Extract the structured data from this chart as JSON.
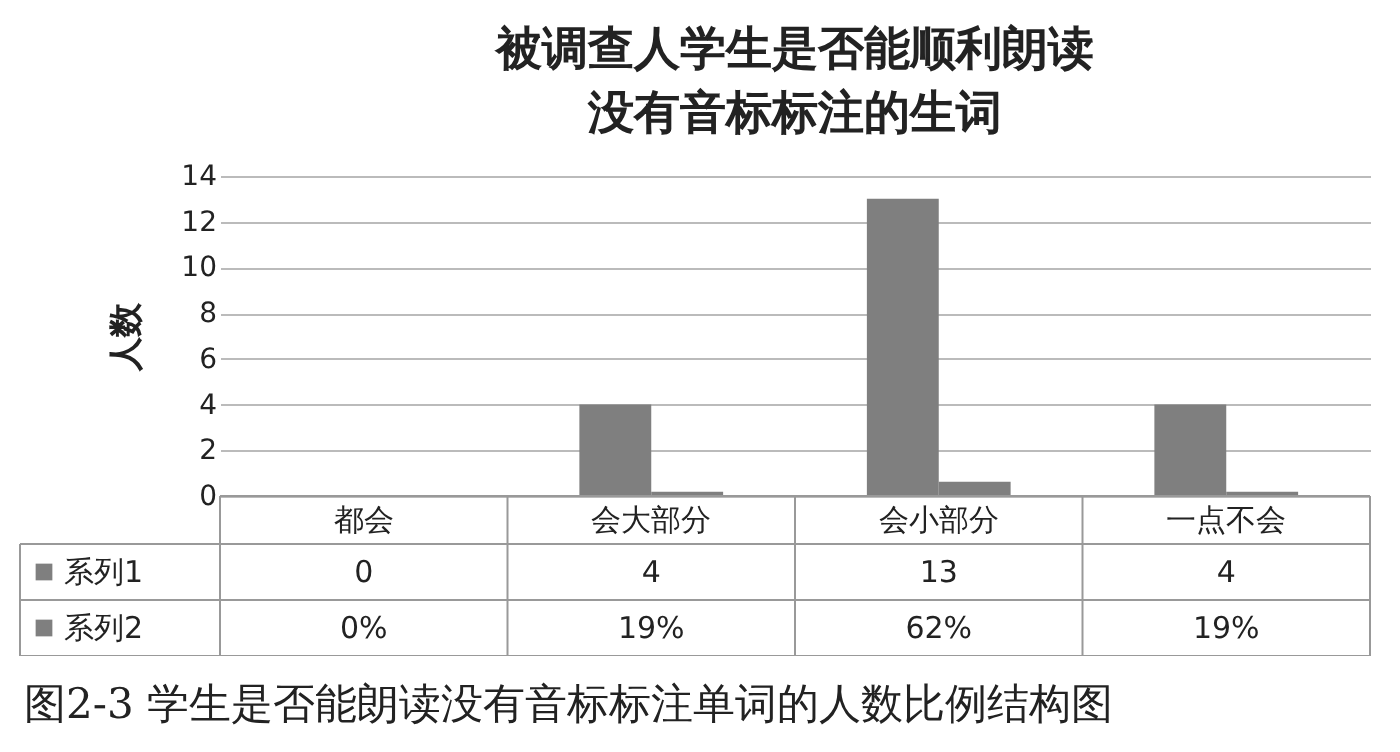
{
  "chart_data": {
    "type": "bar",
    "title": [
      "被调查人学生是否能顺利朗读",
      "没有音标标注的生词"
    ],
    "ylabel": "人数",
    "categories": [
      "都会",
      "会大部分",
      "会小部分",
      "一点不会"
    ],
    "series": [
      {
        "name": "系列1",
        "color": "#7f7f7f",
        "values": [
          0,
          4,
          13,
          4
        ],
        "value_labels": [
          "0",
          "4",
          "13",
          "4"
        ]
      },
      {
        "name": "系列2",
        "color": "#7f7f7f",
        "values": [
          0,
          0.19,
          0.62,
          0.19
        ],
        "value_labels": [
          "0%",
          "19%",
          "62%",
          "19%"
        ]
      }
    ],
    "ylim": [
      0,
      14
    ],
    "yticks": [
      0,
      2,
      4,
      6,
      8,
      10,
      12,
      14
    ],
    "grid": "y",
    "legend": "bottom left",
    "annotations": [
      "图2-3 学生是否能朗读没有音标标注单词的人数比例结构图"
    ]
  }
}
